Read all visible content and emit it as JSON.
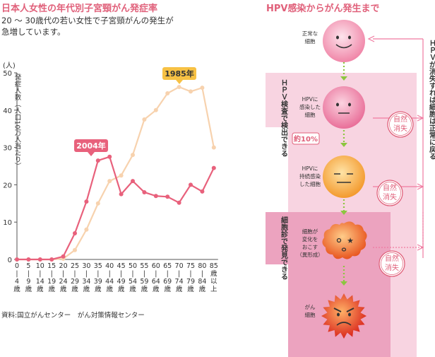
{
  "left_panel": {
    "title": "日本人女性の年代別子宮頸がん発症率",
    "subtitle_line1": "20 ～ 30歳代の若い女性で子宮頸がんの発生が",
    "subtitle_line2": "急増しています。",
    "source": "資料:国立がんセンター　がん対策情報センター"
  },
  "chart_data": {
    "type": "line",
    "unit_label": "(人)",
    "ylabel": "発症人数（人口10万人当たり）",
    "ylim": [
      0,
      50
    ],
    "yticks": [
      0,
      10,
      20,
      30,
      40,
      50
    ],
    "categories": [
      "0 〜 4 歳",
      "5 〜 9 歳",
      "10 〜 14 歳",
      "15 〜 19 歳",
      "20 〜 24 歳",
      "25 〜 29 歳",
      "30 〜 34 歳",
      "35 〜 39 歳",
      "40 〜 44 歳",
      "45 〜 49 歳",
      "50 〜 54 歳",
      "55 〜 59 歳",
      "60 〜 64 歳",
      "65 〜 69 歳",
      "70 〜 74 歳",
      "75 〜 79 歳",
      "80 〜 84 歳",
      "85 歳 以 上"
    ],
    "series": [
      {
        "name": "1985年",
        "color": "#f7d2ae",
        "values": [
          0,
          0,
          0,
          0,
          0.2,
          2.5,
          8,
          15,
          21,
          22.5,
          28,
          37.5,
          40,
          44.5,
          46.2,
          45,
          46,
          30
        ]
      },
      {
        "name": "2004年",
        "color": "#e8617c",
        "values": [
          0,
          0,
          0,
          0,
          0.8,
          7,
          15.5,
          26.5,
          27.5,
          17.5,
          21,
          18,
          17,
          16.8,
          15.2,
          20,
          18.2,
          24.5
        ]
      }
    ],
    "legend_placement": "on-lines",
    "grid": false
  },
  "right_panel": {
    "title": "HPV感染からがん発生まで",
    "vertical_note": "ＨＰＶが消失すれば細胞は正常に戻る",
    "test_hpv": "ＨＰＶ検査で検出できる",
    "test_cyto": "細胞診で発見できる",
    "badge": "約10%",
    "stamp": "自然消失",
    "stages": [
      {
        "label": "正常な細胞",
        "face": "happy"
      },
      {
        "label": "HPVに感染した細胞",
        "face": "neutral"
      },
      {
        "label": "HPVに持続感染した細胞",
        "face": "neutral"
      },
      {
        "label": "細胞が変化をおこす（異形成）",
        "face": "dizzy"
      },
      {
        "label": "がん細胞",
        "face": "angry"
      }
    ]
  }
}
